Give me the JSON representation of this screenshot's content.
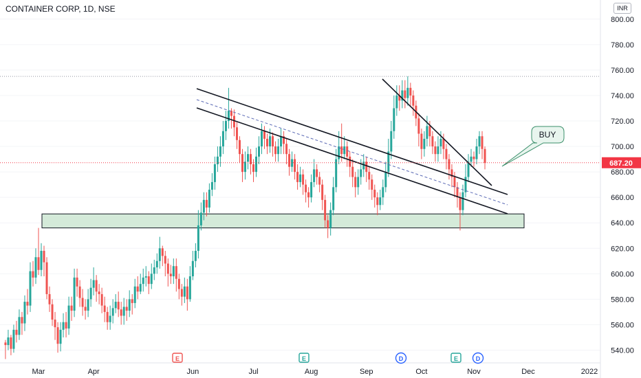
{
  "header": {
    "title": "CONTAINER CORP, 1D, NSE",
    "currency": "INR"
  },
  "chart_data": {
    "type": "candlestick",
    "title": "CONTAINER CORP, 1D, NSE",
    "ylim": [
      530,
      815
    ],
    "y_ticks": [
      800,
      780,
      760,
      740,
      720,
      700,
      680,
      660,
      640,
      620,
      600,
      580,
      560,
      540
    ],
    "y_tick_labels": [
      "800.00",
      "780.00",
      "760.00",
      "740.00",
      "720.00",
      "700.00",
      "680.00",
      "660.00",
      "640.00",
      "620.00",
      "600.00",
      "580.00",
      "560.00",
      "540.00"
    ],
    "x_labels": [
      {
        "label": "Mar",
        "d": 0
      },
      {
        "label": "Apr",
        "d": 20
      },
      {
        "label": "Jun",
        "d": 56
      },
      {
        "label": "Jul",
        "d": 78
      },
      {
        "label": "Aug",
        "d": 99
      },
      {
        "label": "Sep",
        "d": 119
      },
      {
        "label": "Oct",
        "d": 139
      },
      {
        "label": "Nov",
        "d": 158
      },
      {
        "label": "Dec",
        "d": 178
      },
      {
        "label": "2022",
        "d": 198
      }
    ],
    "x_range": [
      -12,
      201
    ],
    "current_price": 687.2,
    "current_price_label": "687.20",
    "high_line": 755,
    "colors": {
      "up": "#26a69a",
      "down": "#ef5350",
      "price_tag": "#f23645",
      "zone_fill": "#d4ead9",
      "callout_fill": "#e8f5ee",
      "callout_border": "#3a8f6a"
    },
    "annotation": {
      "label": "BUY",
      "anchor": [
        162,
        685
      ]
    },
    "support_zone": {
      "from": -12,
      "to": 173,
      "y_low": 636,
      "y_high": 647
    },
    "trendlines": [
      {
        "style": "solid",
        "from": [
          55,
          746
        ],
        "to": [
          173,
          663
        ]
      },
      {
        "style": "solid",
        "from": [
          55,
          731
        ],
        "to": [
          173,
          647
        ]
      },
      {
        "style": "dashed",
        "from": [
          55,
          738
        ],
        "to": [
          173,
          655
        ]
      },
      {
        "style": "solid",
        "from": [
          124,
          755
        ],
        "to": [
          162,
          672
        ]
      }
    ],
    "event_markers": [
      {
        "kind": "E",
        "d": 55,
        "color": "#ef5350"
      },
      {
        "kind": "E",
        "d": 95,
        "color": "#26a69a"
      },
      {
        "kind": "D",
        "d": 125,
        "color": "#2962ff"
      },
      {
        "kind": "E",
        "d": 146,
        "color": "#26a69a"
      },
      {
        "kind": "D",
        "d": 152,
        "color": "#2962ff"
      }
    ],
    "candles": [
      [
        -12,
        546,
        544,
        548,
        533
      ],
      [
        -11,
        544,
        550,
        556,
        540
      ],
      [
        -10,
        550,
        541,
        552,
        536
      ],
      [
        -9,
        541,
        556,
        560,
        538
      ],
      [
        -8,
        556,
        552,
        563,
        546
      ],
      [
        -7,
        552,
        566,
        572,
        548
      ],
      [
        -6,
        566,
        561,
        570,
        552
      ],
      [
        -5,
        561,
        578,
        583,
        555
      ],
      [
        -4,
        578,
        575,
        588,
        568
      ],
      [
        -3,
        575,
        602,
        609,
        570
      ],
      [
        -2,
        602,
        597,
        610,
        590
      ],
      [
        -1,
        597,
        613,
        620,
        592
      ],
      [
        0,
        613,
        603,
        636,
        599
      ],
      [
        1,
        603,
        618,
        624,
        598
      ],
      [
        2,
        618,
        609,
        622,
        598
      ],
      [
        3,
        609,
        584,
        613,
        580
      ],
      [
        4,
        584,
        576,
        590,
        570
      ],
      [
        5,
        576,
        564,
        580,
        559
      ],
      [
        6,
        564,
        558,
        570,
        548
      ],
      [
        7,
        558,
        545,
        562,
        538
      ],
      [
        8,
        545,
        556,
        562,
        539
      ],
      [
        9,
        556,
        562,
        569,
        550
      ],
      [
        10,
        562,
        557,
        570,
        550
      ],
      [
        11,
        557,
        575,
        582,
        552
      ],
      [
        12,
        575,
        571,
        582,
        563
      ],
      [
        13,
        571,
        597,
        604,
        566
      ],
      [
        14,
        597,
        590,
        604,
        582
      ],
      [
        15,
        590,
        581,
        595,
        574
      ],
      [
        16,
        581,
        574,
        588,
        567
      ],
      [
        17,
        574,
        571,
        580,
        564
      ],
      [
        18,
        571,
        580,
        588,
        566
      ],
      [
        19,
        580,
        589,
        596,
        574
      ],
      [
        20,
        589,
        595,
        605,
        583
      ],
      [
        21,
        595,
        586,
        599,
        578
      ],
      [
        22,
        586,
        584,
        592,
        576
      ],
      [
        23,
        584,
        575,
        589,
        569
      ],
      [
        24,
        575,
        570,
        582,
        562
      ],
      [
        25,
        570,
        562,
        574,
        556
      ],
      [
        26,
        562,
        567,
        575,
        556
      ],
      [
        27,
        567,
        573,
        580,
        561
      ],
      [
        28,
        573,
        578,
        584,
        569
      ],
      [
        29,
        578,
        572,
        586,
        566
      ],
      [
        30,
        572,
        567,
        578,
        560
      ],
      [
        31,
        567,
        574,
        581,
        560
      ],
      [
        32,
        574,
        571,
        580,
        563
      ],
      [
        33,
        571,
        580,
        587,
        566
      ],
      [
        34,
        580,
        577,
        584,
        568
      ],
      [
        35,
        577,
        590,
        596,
        573
      ],
      [
        36,
        590,
        586,
        598,
        580
      ],
      [
        37,
        586,
        592,
        600,
        584
      ],
      [
        38,
        592,
        597,
        604,
        586
      ],
      [
        39,
        597,
        598,
        606,
        590
      ],
      [
        40,
        598,
        592,
        602,
        584
      ],
      [
        41,
        592,
        600,
        608,
        588
      ],
      [
        42,
        600,
        605,
        611,
        595
      ],
      [
        43,
        605,
        610,
        616,
        600
      ],
      [
        44,
        610,
        620,
        629,
        604
      ],
      [
        45,
        620,
        614,
        622,
        606
      ],
      [
        46,
        614,
        608,
        618,
        598
      ],
      [
        47,
        608,
        600,
        612,
        590
      ],
      [
        48,
        600,
        598,
        607,
        592
      ],
      [
        49,
        598,
        606,
        612,
        592
      ],
      [
        50,
        606,
        596,
        612,
        586
      ],
      [
        51,
        596,
        588,
        600,
        580
      ],
      [
        52,
        588,
        582,
        592,
        575
      ],
      [
        53,
        582,
        590,
        597,
        577
      ],
      [
        54,
        590,
        580,
        596,
        571
      ],
      [
        55,
        580,
        598,
        606,
        578
      ],
      [
        56,
        598,
        610,
        618,
        595
      ],
      [
        57,
        610,
        618,
        624,
        605
      ],
      [
        58,
        618,
        638,
        650,
        612
      ],
      [
        59,
        638,
        648,
        656,
        634
      ],
      [
        60,
        648,
        658,
        664,
        642
      ],
      [
        61,
        658,
        652,
        664,
        645
      ],
      [
        62,
        652,
        666,
        671,
        648
      ],
      [
        63,
        666,
        672,
        679,
        661
      ],
      [
        64,
        672,
        686,
        692,
        666
      ],
      [
        65,
        686,
        692,
        700,
        680
      ],
      [
        66,
        692,
        700,
        708,
        684
      ],
      [
        67,
        700,
        712,
        720,
        694
      ],
      [
        68,
        712,
        720,
        728,
        705
      ],
      [
        69,
        720,
        728,
        746,
        714
      ],
      [
        70,
        728,
        724,
        730,
        714
      ],
      [
        71,
        724,
        715,
        729,
        708
      ],
      [
        72,
        715,
        705,
        719,
        698
      ],
      [
        73,
        705,
        694,
        708,
        687
      ],
      [
        74,
        694,
        680,
        698,
        672
      ],
      [
        75,
        680,
        688,
        696,
        674
      ],
      [
        76,
        688,
        694,
        700,
        682
      ],
      [
        77,
        694,
        686,
        698,
        678
      ],
      [
        78,
        686,
        680,
        690,
        672
      ],
      [
        79,
        680,
        692,
        699,
        676
      ],
      [
        80,
        692,
        700,
        708,
        686
      ],
      [
        81,
        700,
        712,
        718,
        694
      ],
      [
        82,
        712,
        706,
        716,
        698
      ],
      [
        83,
        706,
        700,
        710,
        694
      ],
      [
        84,
        700,
        708,
        714,
        695
      ],
      [
        85,
        708,
        700,
        711,
        692
      ],
      [
        86,
        700,
        694,
        704,
        688
      ],
      [
        87,
        694,
        700,
        706,
        688
      ],
      [
        88,
        700,
        708,
        714,
        694
      ],
      [
        89,
        708,
        702,
        712,
        694
      ],
      [
        90,
        702,
        694,
        706,
        686
      ],
      [
        91,
        694,
        684,
        698,
        677
      ],
      [
        92,
        684,
        690,
        696,
        680
      ],
      [
        93,
        690,
        680,
        694,
        674
      ],
      [
        94,
        680,
        672,
        686,
        666
      ],
      [
        95,
        672,
        678,
        684,
        668
      ],
      [
        96,
        678,
        670,
        682,
        662
      ],
      [
        97,
        670,
        664,
        674,
        656
      ],
      [
        98,
        664,
        660,
        668,
        652
      ],
      [
        99,
        660,
        672,
        678,
        656
      ],
      [
        100,
        672,
        682,
        690,
        668
      ],
      [
        101,
        682,
        676,
        686,
        670
      ],
      [
        102,
        676,
        670,
        680,
        664
      ],
      [
        103,
        670,
        658,
        674,
        650
      ],
      [
        104,
        658,
        642,
        662,
        636
      ],
      [
        105,
        642,
        636,
        646,
        628
      ],
      [
        106,
        636,
        650,
        656,
        630
      ],
      [
        107,
        650,
        668,
        676,
        646
      ],
      [
        108,
        668,
        690,
        698,
        664
      ],
      [
        109,
        690,
        700,
        712,
        686
      ],
      [
        110,
        700,
        694,
        718,
        688
      ],
      [
        111,
        694,
        700,
        708,
        690
      ],
      [
        112,
        700,
        692,
        704,
        684
      ],
      [
        113,
        692,
        684,
        696,
        676
      ],
      [
        114,
        684,
        676,
        690,
        668
      ],
      [
        115,
        676,
        668,
        680,
        660
      ],
      [
        116,
        668,
        676,
        682,
        662
      ],
      [
        117,
        676,
        682,
        690,
        670
      ],
      [
        118,
        682,
        688,
        694,
        676
      ],
      [
        119,
        688,
        680,
        692,
        672
      ],
      [
        120,
        680,
        674,
        684,
        666
      ],
      [
        121,
        674,
        666,
        678,
        658
      ],
      [
        122,
        666,
        660,
        670,
        652
      ],
      [
        123,
        660,
        654,
        664,
        646
      ],
      [
        124,
        654,
        660,
        666,
        650
      ],
      [
        125,
        660,
        668,
        674,
        654
      ],
      [
        126,
        668,
        680,
        688,
        664
      ],
      [
        127,
        680,
        696,
        706,
        676
      ],
      [
        128,
        696,
        712,
        720,
        690
      ],
      [
        129,
        712,
        730,
        740,
        706
      ],
      [
        130,
        730,
        740,
        748,
        724
      ],
      [
        131,
        740,
        736,
        748,
        728
      ],
      [
        132,
        736,
        744,
        752,
        730
      ],
      [
        133,
        744,
        738,
        752,
        730
      ],
      [
        134,
        738,
        746,
        755,
        732
      ],
      [
        135,
        746,
        740,
        750,
        732
      ],
      [
        136,
        740,
        732,
        744,
        724
      ],
      [
        137,
        732,
        722,
        736,
        716
      ],
      [
        138,
        722,
        710,
        726,
        700
      ],
      [
        139,
        710,
        698,
        714,
        690
      ],
      [
        140,
        698,
        706,
        712,
        692
      ],
      [
        141,
        706,
        716,
        724,
        700
      ],
      [
        142,
        716,
        708,
        720,
        700
      ],
      [
        143,
        708,
        700,
        712,
        694
      ],
      [
        144,
        700,
        694,
        704,
        688
      ],
      [
        145,
        694,
        700,
        708,
        688
      ],
      [
        146,
        700,
        706,
        712,
        694
      ],
      [
        147,
        706,
        698,
        710,
        690
      ],
      [
        148,
        698,
        690,
        702,
        682
      ],
      [
        149,
        690,
        682,
        694,
        674
      ],
      [
        150,
        682,
        676,
        686,
        668
      ],
      [
        151,
        676,
        668,
        680,
        660
      ],
      [
        152,
        668,
        660,
        672,
        652
      ],
      [
        153,
        660,
        650,
        664,
        634
      ],
      [
        154,
        650,
        664,
        670,
        646
      ],
      [
        155,
        664,
        676,
        686,
        660
      ],
      [
        156,
        676,
        688,
        694,
        672
      ],
      [
        157,
        688,
        692,
        698,
        684
      ],
      [
        158,
        692,
        690,
        696,
        684
      ],
      [
        159,
        690,
        700,
        706,
        686
      ],
      [
        160,
        700,
        708,
        712,
        694
      ],
      [
        161,
        708,
        698,
        712,
        690
      ],
      [
        162,
        698,
        687,
        700,
        682
      ]
    ]
  }
}
